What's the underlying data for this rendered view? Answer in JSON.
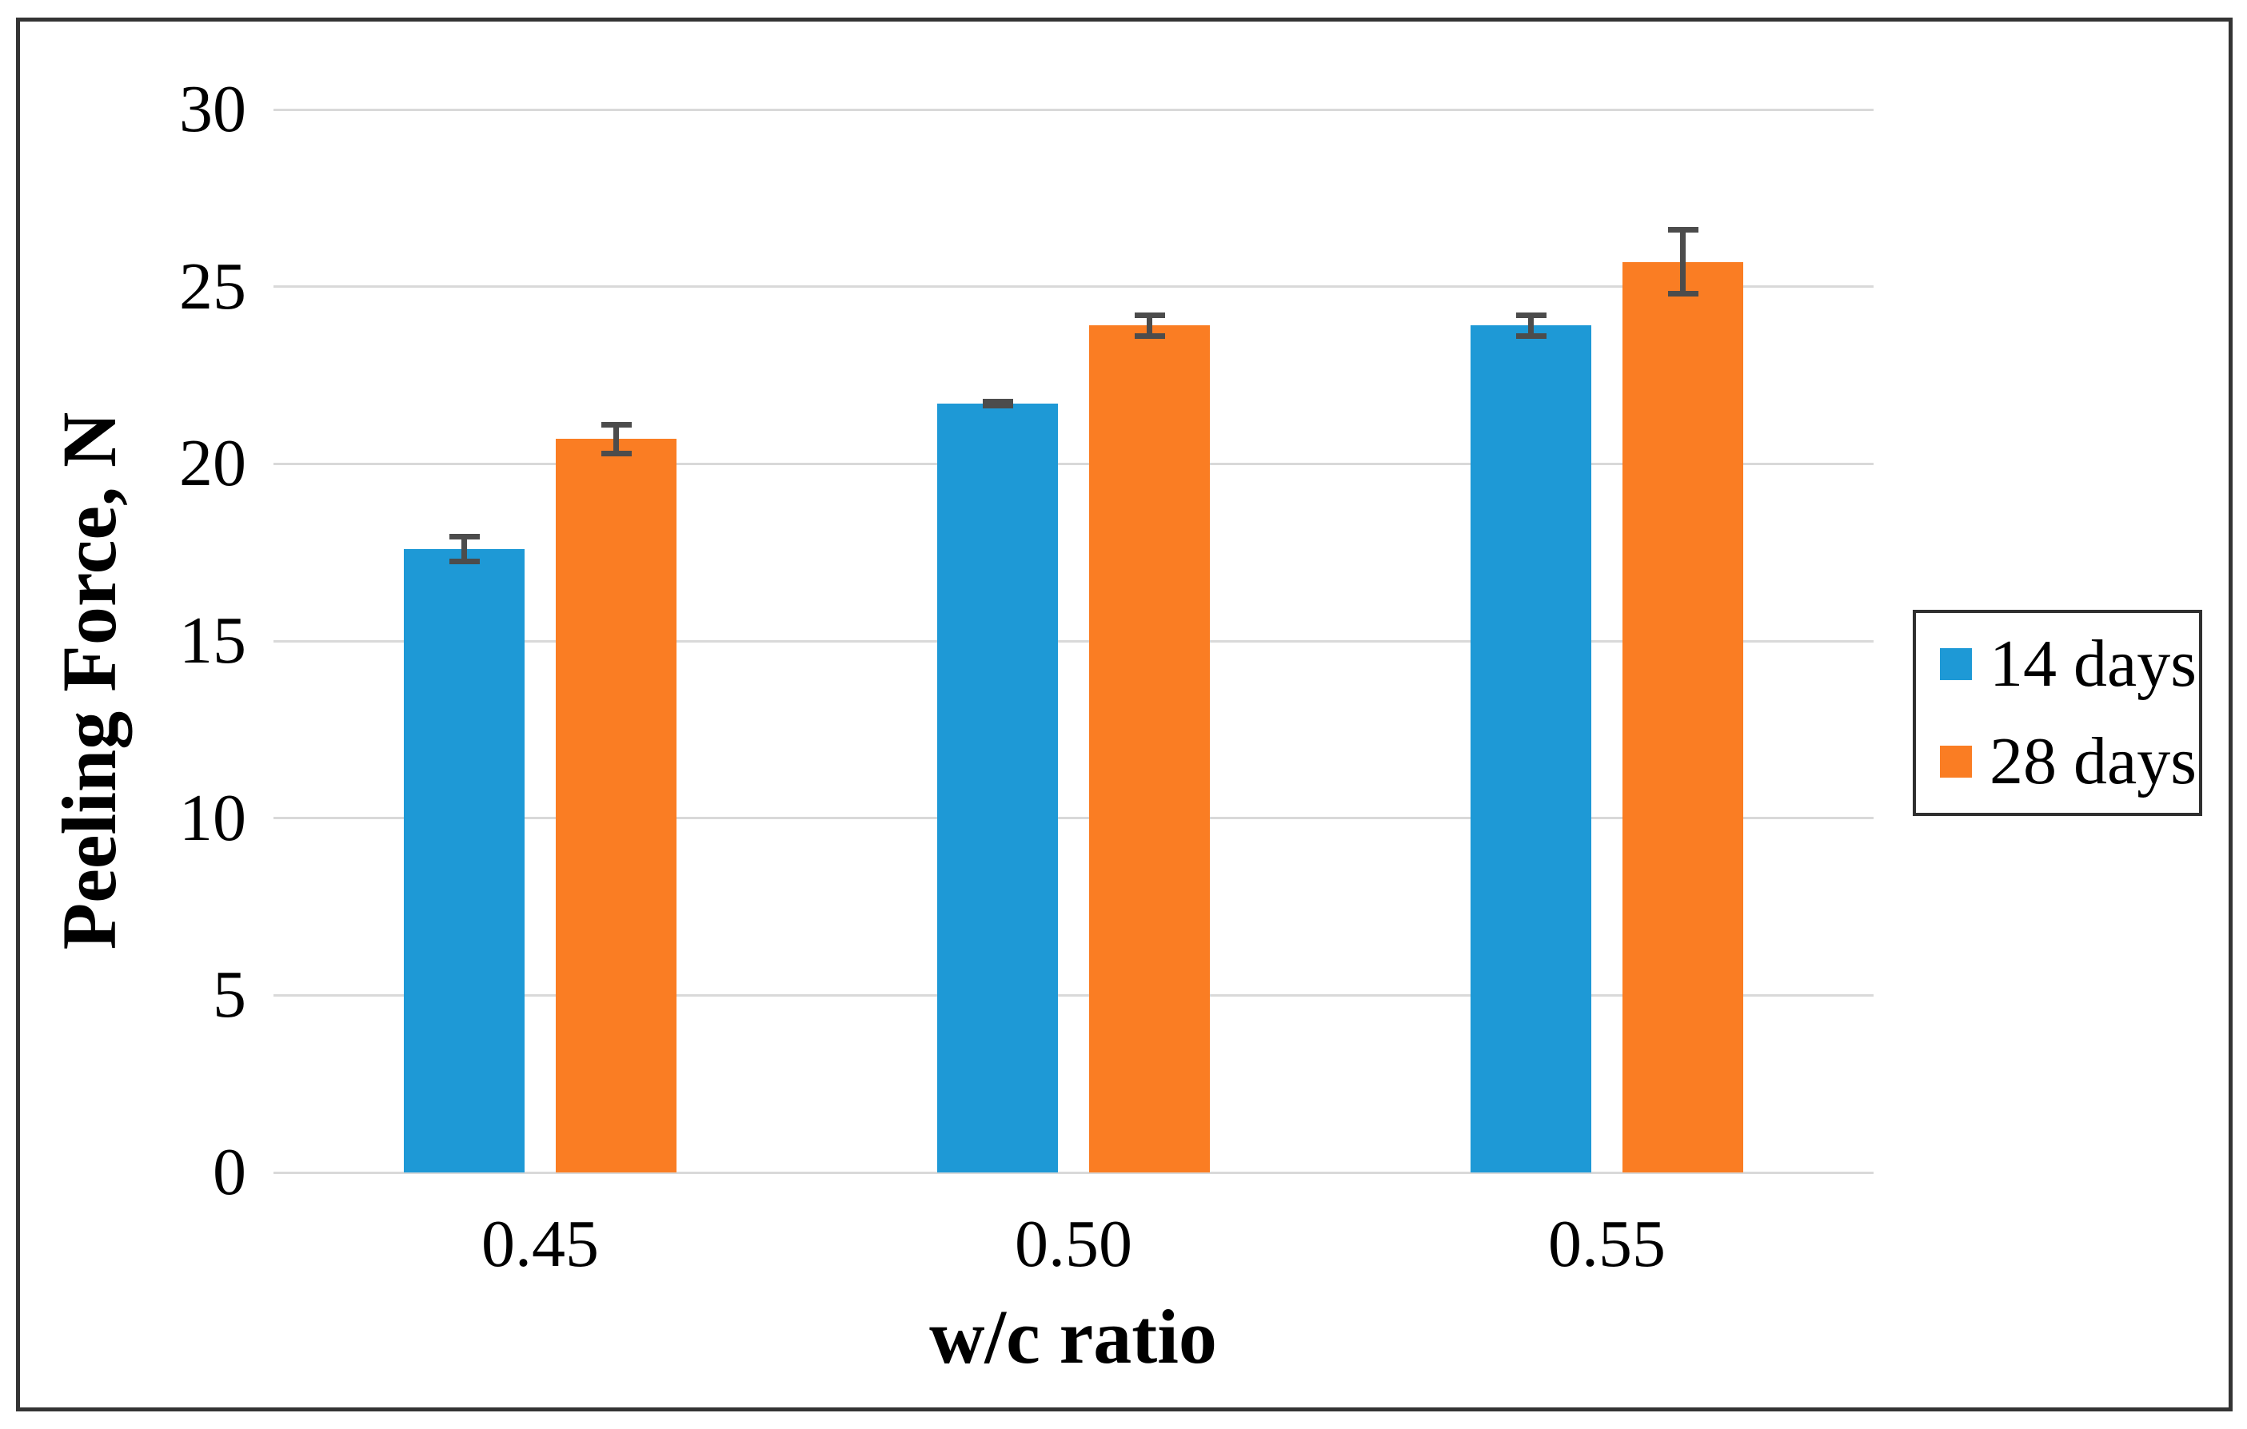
{
  "figure": {
    "background_color": "#ffffff",
    "border_color": "#343434",
    "gridline_color": "#d9d9d9",
    "axis_line_color": "#d9d9d9",
    "error_bar_color": "#4c4c4c",
    "legend_border_color": "#2f2f2f"
  },
  "chart_data": {
    "type": "bar",
    "title": "",
    "xlabel": "w/c ratio",
    "ylabel": "Peeling Force, N",
    "categories": [
      "0.45",
      "0.50",
      "0.55"
    ],
    "series": [
      {
        "name": "14 days",
        "color": "#1E99D6",
        "values": [
          17.6,
          21.7,
          23.9
        ],
        "errors": [
          0.35,
          0.05,
          0.3
        ]
      },
      {
        "name": "28 days",
        "color": "#FA7D23",
        "values": [
          20.7,
          23.9,
          25.7
        ],
        "errors": [
          0.4,
          0.3,
          0.9
        ]
      }
    ],
    "ylim": [
      0,
      30
    ],
    "yticks": [
      0,
      5,
      10,
      15,
      20,
      25,
      30
    ],
    "grid": true,
    "legend_position": "right",
    "legend_labels": [
      "14 days",
      "28 days"
    ]
  }
}
